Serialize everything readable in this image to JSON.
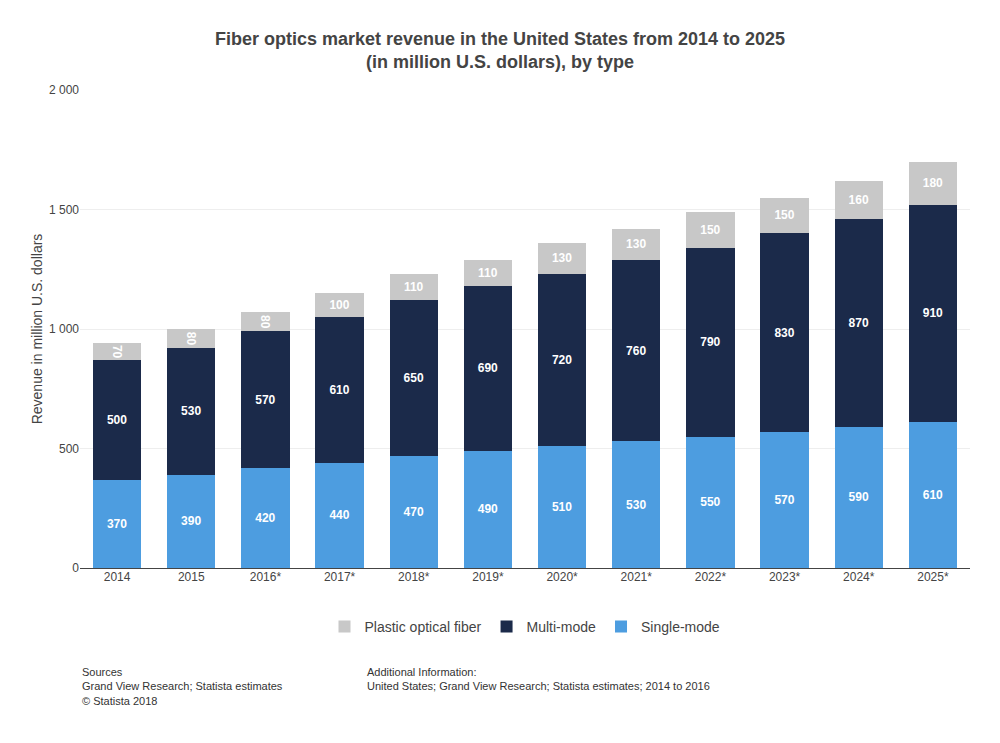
{
  "chart_data": {
    "type": "bar",
    "title": "Fiber optics market revenue in the United States from 2014 to 2025\n(in million U.S. dollars), by type",
    "ylabel": "Revenue in million U.S. dollars",
    "categories": [
      "2014",
      "2015",
      "2016*",
      "2017*",
      "2018*",
      "2019*",
      "2020*",
      "2021*",
      "2022*",
      "2023*",
      "2024*",
      "2025*"
    ],
    "series": [
      {
        "name": "Single-mode",
        "color": "#4d9de0",
        "values": [
          370,
          390,
          420,
          440,
          470,
          490,
          510,
          530,
          550,
          570,
          590,
          610
        ]
      },
      {
        "name": "Multi-mode",
        "color": "#1b2a4a",
        "values": [
          500,
          530,
          570,
          610,
          650,
          690,
          720,
          760,
          790,
          830,
          870,
          910
        ]
      },
      {
        "name": "Plastic optical fiber",
        "color": "#c8c8c8",
        "values": [
          70,
          80,
          80,
          100,
          110,
          110,
          130,
          130,
          150,
          150,
          160,
          180
        ]
      }
    ],
    "stacked": true,
    "data_labels": true,
    "ylim": [
      0,
      2000
    ],
    "yticks": [
      0,
      500,
      {
        "value": 1000,
        "label": "1 000"
      },
      {
        "value": 1500,
        "label": "1 500"
      },
      {
        "value": 2000,
        "label": "2 000"
      }
    ],
    "grid": true,
    "legend": "bottom",
    "annotations": [
      "Sources\nGrand View Research; Statista estimates\n© Statista 2018",
      "Additional Information:\nUnited States; Grand View Research; Statista estimates; 2014 to 2016"
    ]
  }
}
